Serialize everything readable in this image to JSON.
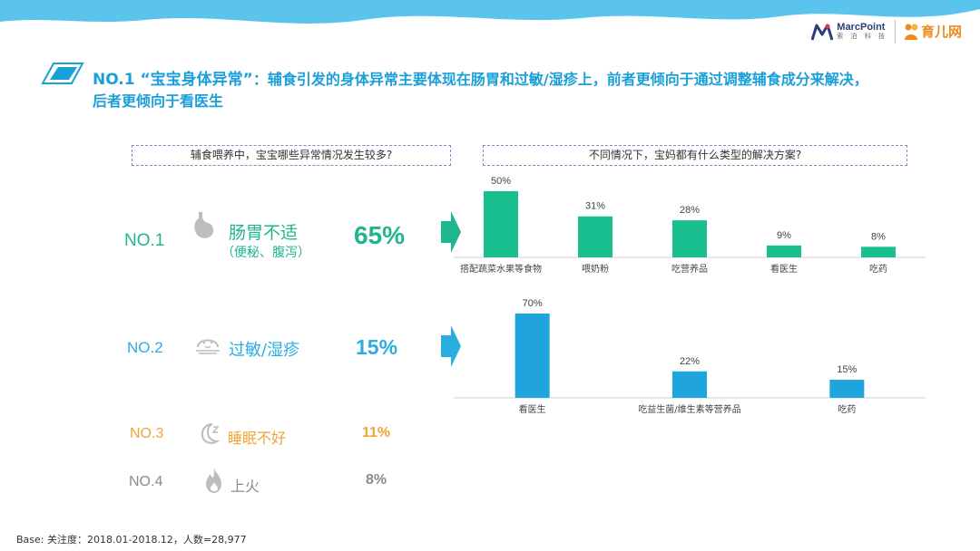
{
  "logos": {
    "marcpoint": "MarcPoint",
    "marcpoint_sub": "索 泊 科 技",
    "yuer": "育儿网"
  },
  "title": {
    "lead": "NO.1 “宝宝身体异常”",
    "text": "：辅食引发的身体异常主要体现在肠胃和过敏/湿疹上，前者更倾向于通过调整辅食成分来解决，后者更倾向于看医生"
  },
  "questions": {
    "left": "辅食喂养中，宝宝哪些异常情况发生较多?",
    "right": "不同情况下，宝妈都有什么类型的解决方案?"
  },
  "issues": [
    {
      "rank": "NO.1",
      "label": "肠胃不适",
      "sub": "（便秘、腹泻）",
      "pct": "65%",
      "icon": "stomach-icon",
      "color": "#1fb58f"
    },
    {
      "rank": "NO.2",
      "label": "过敏/湿疹",
      "sub": "",
      "pct": "15%",
      "icon": "allergy-face-icon",
      "color": "#2aaee0"
    },
    {
      "rank": "NO.3",
      "label": "睡眠不好",
      "sub": "",
      "pct": "11%",
      "icon": "sleep-moon-icon",
      "color": "#f0a437"
    },
    {
      "rank": "NO.4",
      "label": "上火",
      "sub": "",
      "pct": "8%",
      "icon": "fire-icon",
      "color": "#8c8c8c"
    }
  ],
  "chart_data": [
    {
      "type": "bar",
      "categories": [
        "搭配蔬菜水果等食物",
        "喂奶粉",
        "吃营养品",
        "看医生",
        "吃药"
      ],
      "values": [
        50,
        31,
        28,
        9,
        8
      ],
      "data_labels": [
        "50%",
        "31%",
        "28%",
        "9%",
        "8%"
      ],
      "color": "#19bf8f",
      "ylim": [
        0,
        50
      ]
    },
    {
      "type": "bar",
      "categories": [
        "看医生",
        "吃益生菌/维生素等营养品",
        "吃药"
      ],
      "values": [
        70,
        22,
        15
      ],
      "data_labels": [
        "70%",
        "22%",
        "15%"
      ],
      "color": "#1fa4dd",
      "ylim": [
        0,
        70
      ]
    }
  ],
  "footnote": "Base: 关注度：2018.01-2018.12，人数=28,977"
}
